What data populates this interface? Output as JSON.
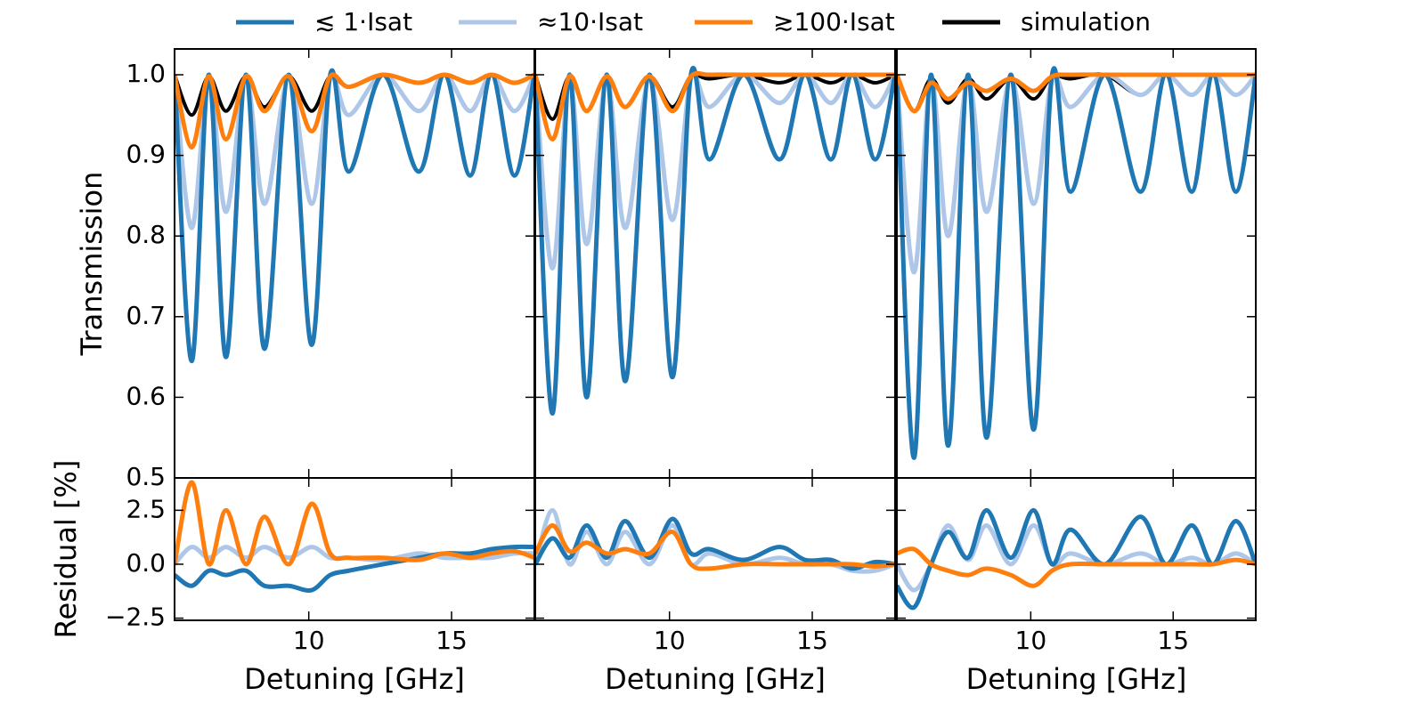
{
  "chart_data": {
    "type": "line",
    "legend": [
      {
        "name": "≲ 1·Isat",
        "color": "#1f77b4"
      },
      {
        "name": "≈10·Isat",
        "color": "#aec7e8"
      },
      {
        "name": "≳100·Isat",
        "color": "#ff7f0e"
      },
      {
        "name": "simulation",
        "color": "#000000"
      }
    ],
    "ylabel_top": "Transmission",
    "ylabel_bottom": "Residual [%]",
    "xlabel": "Detuning [GHz]",
    "xlim": [
      5.3,
      17.9
    ],
    "xticks": [
      10,
      15
    ],
    "top": {
      "ylim": [
        0.5,
        1.032
      ],
      "yticks": [
        0.5,
        0.6,
        0.7,
        0.8,
        0.9,
        {
          "value": 1,
          "label": "1.0"
        }
      ]
    },
    "bottom": {
      "ylim": [
        -2.6,
        4.0
      ],
      "yticks": [
        {
          "value": -2.5,
          "label": "−2.5"
        },
        {
          "value": 0,
          "label": "0.0"
        },
        2.5
      ]
    },
    "panels": [
      {
        "x": [
          5.3,
          5.9,
          6.5,
          7.1,
          7.8,
          8.45,
          9.3,
          10.1,
          10.75,
          11.4,
          12.6,
          13.85,
          14.75,
          15.65,
          16.4,
          17.2,
          17.9
        ],
        "transmission": [
          [
            1.0,
            0.645,
            1.0,
            0.65,
            1.0,
            0.66,
            1.0,
            0.665,
            1.0,
            0.88,
            1.0,
            0.88,
            1.0,
            0.875,
            1.0,
            0.875,
            1.0
          ],
          [
            1.0,
            0.81,
            0.995,
            0.83,
            0.995,
            0.84,
            0.995,
            0.84,
            0.995,
            0.95,
            1.0,
            0.955,
            1.0,
            0.955,
            1.0,
            0.955,
            1.0
          ],
          [
            1.0,
            0.91,
            0.998,
            0.92,
            0.998,
            0.955,
            0.998,
            0.93,
            0.998,
            0.985,
            1.0,
            0.99,
            1.0,
            0.99,
            1.0,
            0.99,
            1.0
          ],
          [
            1.0,
            0.95,
            0.998,
            0.955,
            0.998,
            0.96,
            0.998,
            0.955,
            0.998,
            0.985,
            1.0,
            0.99,
            1.0,
            0.99,
            1.0,
            0.99,
            1.0
          ]
        ],
        "residual": [
          [
            -0.5,
            -1,
            -0.3,
            -0.5,
            -0.3,
            -1,
            -1,
            -1.2,
            -0.5,
            -0.3,
            0,
            0.3,
            0.5,
            0.5,
            0.7,
            0.8,
            0.8
          ],
          [
            0,
            0.8,
            0.3,
            0.8,
            0.3,
            0.8,
            0.3,
            0.8,
            0.3,
            0.3,
            0.2,
            0.5,
            0.3,
            0.3,
            0.3,
            0.5,
            0.5
          ],
          [
            0,
            3.8,
            0,
            2.5,
            0,
            2.2,
            0,
            2.8,
            0.5,
            0.3,
            0.3,
            0.2,
            0.5,
            0.3,
            0.5,
            0.6,
            0.3
          ]
        ]
      },
      {
        "x": [
          5.3,
          5.9,
          6.5,
          7.1,
          7.8,
          8.45,
          9.3,
          10.1,
          10.75,
          11.4,
          12.6,
          13.85,
          14.75,
          15.65,
          16.4,
          17.2,
          17.9
        ],
        "transmission": [
          [
            1.0,
            0.58,
            1.0,
            0.6,
            1.0,
            0.62,
            1.0,
            0.625,
            1.0,
            0.895,
            1.0,
            0.895,
            1.0,
            0.895,
            1.0,
            0.895,
            1.0
          ],
          [
            1.0,
            0.76,
            0.995,
            0.79,
            0.995,
            0.81,
            0.995,
            0.82,
            0.995,
            0.96,
            1.0,
            0.965,
            1.0,
            0.965,
            1.0,
            0.96,
            1.0
          ],
          [
            1.0,
            0.92,
            0.998,
            0.955,
            0.998,
            0.96,
            0.998,
            0.955,
            0.998,
            1.0,
            1.0,
            1.0,
            1.0,
            1.0,
            1.0,
            1.0,
            1.0
          ],
          [
            1.0,
            0.945,
            0.998,
            0.955,
            0.998,
            0.96,
            0.998,
            0.96,
            0.998,
            0.995,
            1.0,
            0.99,
            1.0,
            0.99,
            1.0,
            0.99,
            1.0
          ]
        ],
        "residual": [
          [
            0,
            1.2,
            0.3,
            1.8,
            0.3,
            2.0,
            0.3,
            2.1,
            0.5,
            0.7,
            0.2,
            0.8,
            0.2,
            0.2,
            -0.2,
            0.1,
            0
          ],
          [
            0,
            2.5,
            0,
            1.5,
            0,
            1.5,
            0,
            1.8,
            0,
            0.5,
            0,
            0.3,
            0,
            0,
            -0.3,
            -0.3,
            0
          ],
          [
            0.5,
            1.8,
            0.6,
            1.0,
            0.5,
            0.7,
            0.5,
            1.5,
            0,
            -0.2,
            0,
            0,
            0,
            0,
            0,
            -0.1,
            0
          ]
        ]
      },
      {
        "x": [
          5.3,
          5.9,
          6.5,
          7.1,
          7.8,
          8.45,
          9.3,
          10.1,
          10.75,
          11.4,
          12.6,
          13.85,
          14.75,
          15.65,
          16.4,
          17.2,
          17.9
        ],
        "transmission": [
          [
            1.0,
            0.525,
            1.0,
            0.54,
            1.0,
            0.55,
            1.0,
            0.56,
            1.0,
            0.855,
            1.0,
            0.855,
            1.0,
            0.855,
            1.0,
            0.855,
            1.0
          ],
          [
            1.0,
            0.755,
            0.995,
            0.8,
            0.995,
            0.83,
            0.995,
            0.84,
            0.995,
            0.96,
            1.0,
            0.975,
            1.0,
            0.975,
            1.0,
            0.975,
            1.0
          ],
          [
            1.0,
            0.955,
            0.99,
            0.97,
            0.99,
            0.98,
            0.995,
            0.98,
            0.998,
            1.0,
            1.0,
            1.0,
            1.0,
            1.0,
            1.0,
            1.0,
            1.0
          ],
          [
            1.0,
            0.955,
            0.995,
            0.965,
            0.995,
            0.97,
            0.995,
            0.97,
            0.998,
            0.995,
            1.0,
            0.975,
            1.0,
            0.975,
            1.0,
            0.975,
            1.0
          ]
        ],
        "residual": [
          [
            -1,
            -2,
            0,
            1.5,
            0.3,
            2.5,
            0.3,
            2.5,
            0,
            1.6,
            0,
            2.2,
            0,
            1.8,
            0,
            2,
            0
          ],
          [
            0,
            -1.2,
            0,
            1.8,
            0.2,
            1.8,
            0,
            1.8,
            0,
            0.5,
            0,
            0.5,
            0,
            0.3,
            0,
            0.5,
            0
          ],
          [
            0.5,
            0.7,
            0,
            -0.3,
            -0.5,
            -0.2,
            -0.5,
            -1,
            -0.3,
            0,
            0,
            0,
            0,
            0,
            0,
            0.2,
            0
          ]
        ]
      }
    ]
  }
}
